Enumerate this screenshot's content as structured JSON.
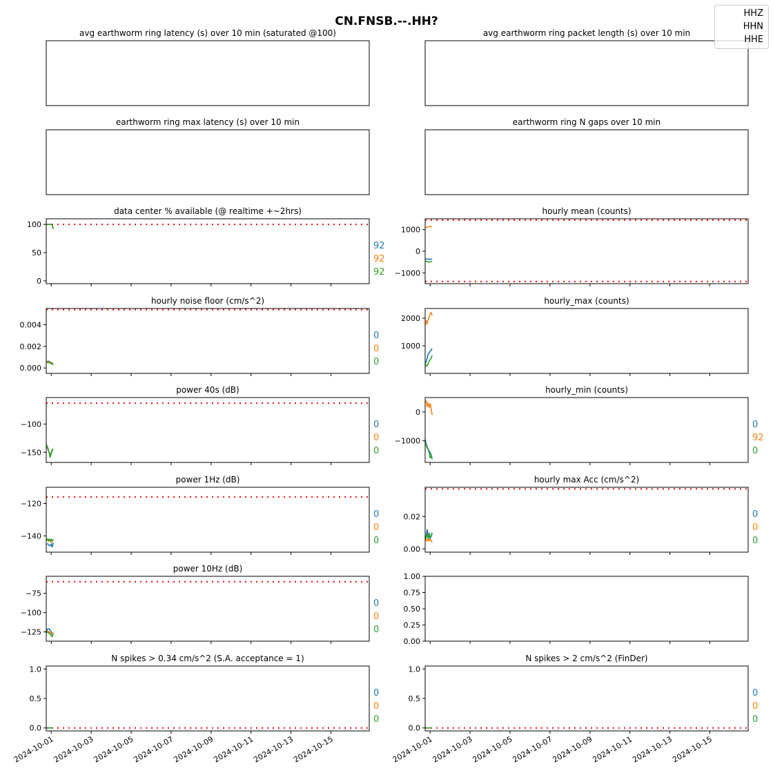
{
  "figure": {
    "title": "CN.FNSB.--.HH?",
    "legend": [
      "HHZ",
      "HHN",
      "HHE"
    ]
  },
  "colors": {
    "HHZ": "#1f77b4",
    "HHN": "#ff7f0e",
    "HHE": "#2ca02c",
    "threshold": "#ff0000"
  },
  "x_ticks": [
    "2024-10-01",
    "2024-10-03",
    "2024-10-05",
    "2024-10-07",
    "2024-10-09",
    "2024-10-11",
    "2024-10-13",
    "2024-10-15"
  ],
  "x_range": [
    "2024-09-30T18:00",
    "2024-10-16T22:00"
  ],
  "chart_data": [
    {
      "id": "avg_latency",
      "type": "line",
      "title": "avg earthworm ring latency (s)   over 10 min (saturated @100)",
      "empty": true,
      "series": []
    },
    {
      "id": "avg_packet_length",
      "type": "line",
      "title": "avg earthworm ring packet length (s)   over 10 min",
      "empty": true,
      "series": []
    },
    {
      "id": "max_latency",
      "type": "line",
      "title": "earthworm ring max latency (s)   over 10 min",
      "empty": true,
      "series": []
    },
    {
      "id": "n_gaps",
      "type": "line",
      "title": "earthworm ring N gaps   over 10 min",
      "empty": true,
      "series": []
    },
    {
      "id": "availability",
      "type": "line",
      "title": "data center % available (@ realtime +~2hrs)",
      "ylim": [
        -5,
        110
      ],
      "yticks": [
        0,
        50,
        100
      ],
      "thresholds": [
        100
      ],
      "ytick_labels": [
        "0",
        "50",
        "100"
      ],
      "end_values": [
        "92",
        "92",
        "92"
      ],
      "series": [
        {
          "name": "HHZ",
          "x": [
            0,
            0.05,
            0.1,
            0.15,
            0.2,
            0.25,
            0.3,
            0.35
          ],
          "y": [
            100,
            100,
            100,
            100,
            100,
            100,
            99,
            92
          ]
        },
        {
          "name": "HHN",
          "x": [
            0,
            0.05,
            0.1,
            0.15,
            0.2,
            0.25,
            0.3,
            0.35
          ],
          "y": [
            100,
            100,
            100,
            100,
            100,
            100,
            99,
            92
          ]
        },
        {
          "name": "HHE",
          "x": [
            0,
            0.05,
            0.1,
            0.15,
            0.2,
            0.25,
            0.3,
            0.35
          ],
          "y": [
            100,
            100,
            100,
            100,
            100,
            100,
            99,
            92
          ]
        }
      ]
    },
    {
      "id": "hourly_mean",
      "type": "line",
      "title": "hourly mean (counts)",
      "ylim": [
        -1500,
        1500
      ],
      "yticks": [
        -1000,
        0,
        1000
      ],
      "thresholds": [
        1440,
        -1400
      ],
      "ytick_labels": [
        "−1000",
        "0",
        "1000"
      ],
      "end_values": [
        "",
        "",
        ""
      ],
      "series": [
        {
          "name": "HHZ",
          "x": [
            0,
            0.1,
            0.2,
            0.3,
            0.35
          ],
          "y": [
            -360,
            -370,
            -365,
            -370,
            -360
          ]
        },
        {
          "name": "HHN",
          "x": [
            0,
            0.1,
            0.2,
            0.3,
            0.35
          ],
          "y": [
            1080,
            1120,
            1140,
            1130,
            1140
          ]
        },
        {
          "name": "HHE",
          "x": [
            0,
            0.1,
            0.2,
            0.3,
            0.35
          ],
          "y": [
            -460,
            -490,
            -500,
            -480,
            -470
          ]
        }
      ]
    },
    {
      "id": "noise_floor",
      "type": "line",
      "title": "hourly noise floor (cm/s^2)",
      "ylim": [
        -0.0005,
        0.0055
      ],
      "yticks": [
        0,
        0.002,
        0.004
      ],
      "thresholds": [
        0.0054
      ],
      "ytick_labels": [
        "0.000",
        "0.002",
        "0.004"
      ],
      "end_values": [
        "0",
        "0",
        "0"
      ],
      "series": [
        {
          "name": "HHZ",
          "x": [
            0,
            0.05,
            0.1,
            0.15,
            0.2,
            0.25,
            0.3,
            0.35
          ],
          "y": [
            0.0006,
            0.0006,
            0.00065,
            0.0006,
            0.00055,
            0.0005,
            0.00045,
            0.0004
          ]
        },
        {
          "name": "HHN",
          "x": [
            0,
            0.05,
            0.1,
            0.15,
            0.2,
            0.25,
            0.3,
            0.35
          ],
          "y": [
            0.00055,
            0.0006,
            0.0006,
            0.00055,
            0.0005,
            0.00045,
            0.0004,
            0.00035
          ]
        },
        {
          "name": "HHE",
          "x": [
            0,
            0.05,
            0.1,
            0.15,
            0.2,
            0.25,
            0.3,
            0.35
          ],
          "y": [
            0.0005,
            0.00055,
            0.0005,
            0.0005,
            0.00045,
            0.0004,
            0.00035,
            0.0003
          ]
        }
      ]
    },
    {
      "id": "hourly_max",
      "type": "line",
      "title": "hourly_max (counts)",
      "ylim": [
        0,
        2350
      ],
      "yticks": [
        1000,
        2000
      ],
      "thresholds": [],
      "ytick_labels": [
        "1000",
        "2000"
      ],
      "end_values": [
        "",
        "",
        ""
      ],
      "series": [
        {
          "name": "HHZ",
          "x": [
            0,
            0.05,
            0.1,
            0.15,
            0.2,
            0.25,
            0.3,
            0.35
          ],
          "y": [
            350,
            420,
            550,
            700,
            750,
            800,
            850,
            900
          ]
        },
        {
          "name": "HHN",
          "x": [
            0,
            0.05,
            0.1,
            0.15,
            0.2,
            0.25,
            0.3,
            0.35
          ],
          "y": [
            1750,
            1900,
            1800,
            1950,
            2050,
            2150,
            2200,
            2100
          ]
        },
        {
          "name": "HHE",
          "x": [
            0,
            0.05,
            0.1,
            0.15,
            0.2,
            0.25,
            0.3,
            0.35
          ],
          "y": [
            250,
            300,
            280,
            350,
            450,
            500,
            550,
            650
          ]
        }
      ]
    },
    {
      "id": "power_40s",
      "type": "line",
      "title": "power 40s (dB)",
      "ylim": [
        -168,
        -53
      ],
      "yticks": [
        -150,
        -100
      ],
      "thresholds": [
        -63
      ],
      "ytick_labels": [
        "−150",
        "−100"
      ],
      "end_values": [
        "0",
        "0",
        "0"
      ],
      "series": [
        {
          "name": "HHZ",
          "x": [
            0,
            0.05,
            0.1,
            0.15,
            0.2,
            0.25,
            0.3,
            0.35
          ],
          "y": [
            -138,
            -142,
            -146,
            -150,
            -156,
            -150,
            -146,
            -145
          ]
        },
        {
          "name": "HHN",
          "x": [
            0,
            0.05,
            0.1,
            0.15,
            0.2,
            0.25,
            0.3,
            0.35
          ],
          "y": [
            -137,
            -141,
            -145,
            -152,
            -158,
            -151,
            -147,
            -144
          ]
        },
        {
          "name": "HHE",
          "x": [
            0,
            0.05,
            0.1,
            0.15,
            0.2,
            0.25,
            0.3,
            0.35
          ],
          "y": [
            -136,
            -140,
            -144,
            -151,
            -159,
            -152,
            -146,
            -144
          ]
        }
      ]
    },
    {
      "id": "hourly_min",
      "type": "line",
      "title": "hourly_min (counts)",
      "ylim": [
        -1750,
        500
      ],
      "yticks": [
        -1000,
        0
      ],
      "thresholds": [],
      "ytick_labels": [
        "−1000",
        "0"
      ],
      "end_values": [
        "0",
        "92",
        "0"
      ],
      "series": [
        {
          "name": "HHZ",
          "x": [
            0,
            0.05,
            0.1,
            0.15,
            0.2,
            0.25,
            0.3,
            0.35
          ],
          "y": [
            -950,
            -1100,
            -1200,
            -1300,
            -1350,
            -1400,
            -1500,
            -1550
          ]
        },
        {
          "name": "HHN",
          "x": [
            0,
            0.05,
            0.1,
            0.15,
            0.2,
            0.25,
            0.3,
            0.35
          ],
          "y": [
            350,
            380,
            200,
            300,
            150,
            300,
            100,
            -100
          ]
        },
        {
          "name": "HHE",
          "x": [
            0,
            0.05,
            0.1,
            0.15,
            0.2,
            0.25,
            0.3,
            0.35
          ],
          "y": [
            -1000,
            -1150,
            -1250,
            -1300,
            -1400,
            -1600,
            -1500,
            -1650
          ]
        }
      ]
    },
    {
      "id": "power_1hz",
      "type": "line",
      "title": "power 1Hz (dB)",
      "ylim": [
        -150,
        -110
      ],
      "yticks": [
        -140,
        -120
      ],
      "thresholds": [
        -116
      ],
      "ytick_labels": [
        "−140",
        "−120"
      ],
      "end_values": [
        "0",
        "0",
        "0"
      ],
      "series": [
        {
          "name": "HHZ",
          "x": [
            0,
            0.05,
            0.1,
            0.15,
            0.2,
            0.25,
            0.3,
            0.35
          ],
          "y": [
            -145,
            -145,
            -145,
            -146,
            -146,
            -145,
            -147,
            -144
          ]
        },
        {
          "name": "HHN",
          "x": [
            0,
            0.05,
            0.1,
            0.15,
            0.2,
            0.25,
            0.3,
            0.35
          ],
          "y": [
            -143,
            -142,
            -142,
            -143,
            -143,
            -144,
            -143,
            -143
          ]
        },
        {
          "name": "HHE",
          "x": [
            0,
            0.05,
            0.1,
            0.15,
            0.2,
            0.25,
            0.3,
            0.35
          ],
          "y": [
            -142,
            -142,
            -143,
            -142,
            -143,
            -142,
            -143,
            -142
          ]
        }
      ]
    },
    {
      "id": "hourly_max_acc",
      "type": "line",
      "title": "hourly max Acc (cm/s^2)",
      "ylim": [
        -0.002,
        0.038
      ],
      "yticks": [
        0,
        0.02
      ],
      "thresholds": [
        0.037
      ],
      "ytick_labels": [
        "0.00",
        "0.02"
      ],
      "end_values": [
        "0",
        "0",
        "0"
      ],
      "series": [
        {
          "name": "HHZ",
          "x": [
            0,
            0.05,
            0.1,
            0.15,
            0.2,
            0.25,
            0.3,
            0.35
          ],
          "y": [
            0.007,
            0.008,
            0.012,
            0.007,
            0.009,
            0.006,
            0.008,
            0.01
          ]
        },
        {
          "name": "HHN",
          "x": [
            0,
            0.05,
            0.1,
            0.15,
            0.2,
            0.25,
            0.3,
            0.35
          ],
          "y": [
            0.005,
            0.006,
            0.005,
            0.006,
            0.005,
            0.006,
            0.005,
            0.004
          ]
        },
        {
          "name": "HHE",
          "x": [
            0,
            0.05,
            0.1,
            0.15,
            0.2,
            0.25,
            0.3,
            0.35
          ],
          "y": [
            0.006,
            0.007,
            0.009,
            0.006,
            0.01,
            0.007,
            0.008,
            0.009
          ]
        }
      ]
    },
    {
      "id": "power_10hz",
      "type": "line",
      "title": "power 10Hz (dB)",
      "ylim": [
        -137,
        -53
      ],
      "yticks": [
        -125,
        -100,
        -75
      ],
      "thresholds": [
        -60
      ],
      "ytick_labels": [
        "−125",
        "−100",
        "−75"
      ],
      "end_values": [
        "0",
        "0",
        "0"
      ],
      "series": [
        {
          "name": "HHZ",
          "x": [
            0,
            0.05,
            0.1,
            0.15,
            0.2,
            0.25,
            0.3,
            0.35
          ],
          "y": [
            -124,
            -122,
            -121,
            -121,
            -123,
            -125,
            -128,
            -126
          ]
        },
        {
          "name": "HHN",
          "x": [
            0,
            0.05,
            0.1,
            0.15,
            0.2,
            0.25,
            0.3,
            0.35
          ],
          "y": [
            -125,
            -124,
            -124,
            -125,
            -126,
            -127,
            -127,
            -126
          ]
        },
        {
          "name": "HHE",
          "x": [
            0,
            0.05,
            0.1,
            0.15,
            0.2,
            0.25,
            0.3,
            0.35
          ],
          "y": [
            -126,
            -125,
            -126,
            -127,
            -128,
            -130,
            -131,
            -127
          ]
        }
      ]
    },
    {
      "id": "blank_axes",
      "type": "line",
      "title": "",
      "ylim": [
        0,
        1
      ],
      "yticks": [
        0,
        0.25,
        0.5,
        0.75,
        1
      ],
      "thresholds": [],
      "ytick_labels": [
        "0.00",
        "0.25",
        "0.50",
        "0.75",
        "1.00"
      ],
      "end_values": [
        "",
        "",
        ""
      ],
      "series": []
    },
    {
      "id": "spikes_034",
      "type": "line",
      "title": "N spikes > 0.34 cm/s^2 (S.A. acceptance = 1)",
      "ylim": [
        -0.05,
        1.05
      ],
      "yticks": [
        0,
        0.5,
        1
      ],
      "thresholds": [
        0
      ],
      "ytick_labels": [
        "0.0",
        "0.5",
        "1.0"
      ],
      "end_values": [
        "0",
        "0",
        "0"
      ],
      "series": [
        {
          "name": "HHZ",
          "x": [
            0,
            0.35
          ],
          "y": [
            0,
            0
          ]
        },
        {
          "name": "HHN",
          "x": [
            0,
            0.35
          ],
          "y": [
            0,
            0
          ]
        },
        {
          "name": "HHE",
          "x": [
            0,
            0.35
          ],
          "y": [
            0,
            0
          ]
        }
      ]
    },
    {
      "id": "spikes_2",
      "type": "line",
      "title": "N spikes > 2 cm/s^2 (FinDer)",
      "ylim": [
        -0.05,
        1.05
      ],
      "yticks": [
        0,
        0.5,
        1
      ],
      "thresholds": [
        0
      ],
      "ytick_labels": [
        "0.0",
        "0.5",
        "1.0"
      ],
      "end_values": [
        "0",
        "0",
        "0"
      ],
      "series": [
        {
          "name": "HHZ",
          "x": [
            0,
            0.35
          ],
          "y": [
            0,
            0
          ]
        },
        {
          "name": "HHN",
          "x": [
            0,
            0.35
          ],
          "y": [
            0,
            0
          ]
        },
        {
          "name": "HHE",
          "x": [
            0,
            0.35
          ],
          "y": [
            0,
            0
          ]
        }
      ]
    }
  ]
}
